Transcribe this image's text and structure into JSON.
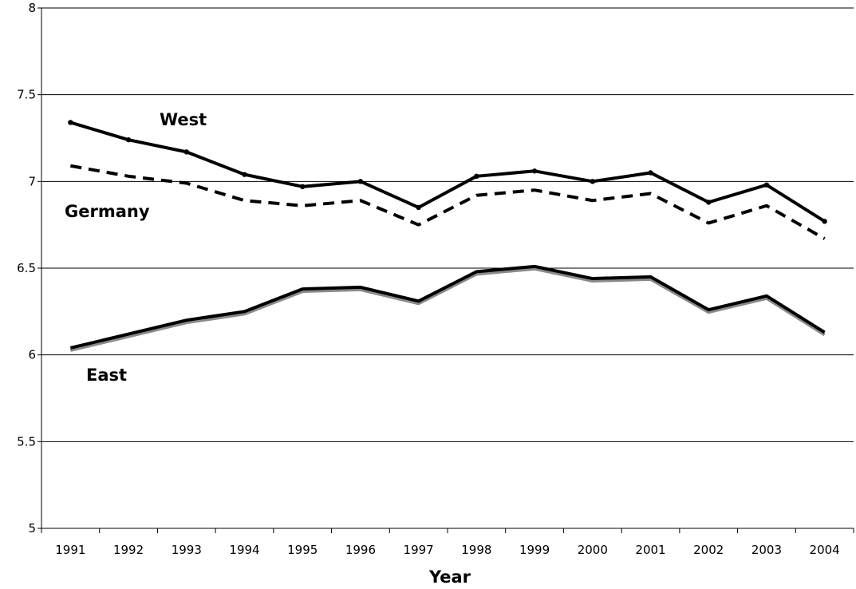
{
  "chart_data": {
    "type": "line",
    "title": "",
    "xlabel": "Year",
    "ylabel": "",
    "ylim": [
      5,
      8
    ],
    "y_ticks": [
      "5",
      "5.5",
      "6",
      "6.5",
      "7",
      "7.5",
      "8"
    ],
    "categories": [
      "1991",
      "1992",
      "1993",
      "1994",
      "1995",
      "1996",
      "1997",
      "1998",
      "1999",
      "2000",
      "2001",
      "2002",
      "2003",
      "2004"
    ],
    "grid": "horizontal",
    "series": [
      {
        "name": "West",
        "style": "solid",
        "color": "#000000",
        "values": [
          7.34,
          7.24,
          7.17,
          7.04,
          6.97,
          7.0,
          6.85,
          7.03,
          7.06,
          7.0,
          7.05,
          6.88,
          6.98,
          6.77
        ]
      },
      {
        "name": "Germany",
        "style": "dashed",
        "color": "#000000",
        "values": [
          7.09,
          7.03,
          6.99,
          6.89,
          6.86,
          6.89,
          6.75,
          6.92,
          6.95,
          6.89,
          6.93,
          6.76,
          6.86,
          6.67
        ]
      },
      {
        "name": "East",
        "style": "solid",
        "color": "#000000",
        "values": [
          6.04,
          6.12,
          6.2,
          6.25,
          6.38,
          6.39,
          6.31,
          6.48,
          6.51,
          6.44,
          6.45,
          6.26,
          6.34,
          6.13
        ]
      }
    ]
  }
}
